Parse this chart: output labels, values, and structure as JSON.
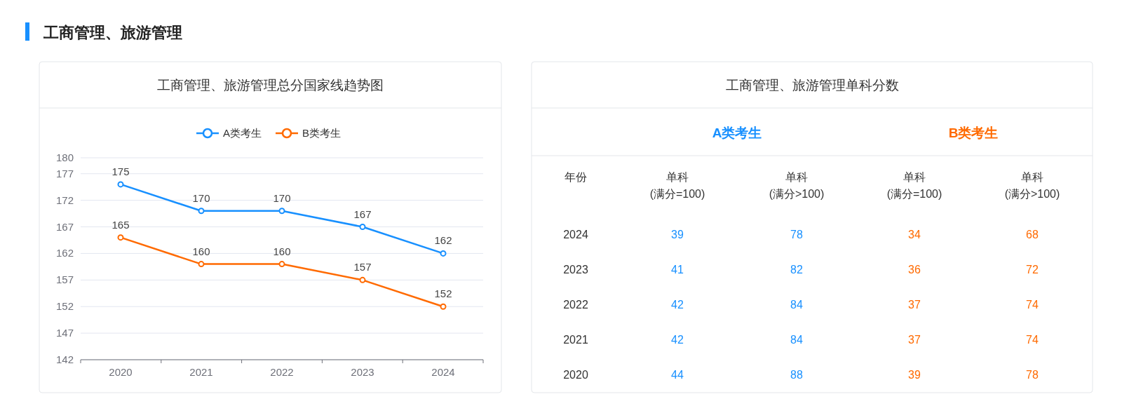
{
  "chart_data": [
    {
      "type": "line",
      "title": "工商管理、旅游管理总分国家线趋势图",
      "annotations": [
        "工商管理、旅游管理"
      ],
      "categories": [
        "2020",
        "2021",
        "2022",
        "2023",
        "2024"
      ],
      "series": [
        {
          "name": "A类考生",
          "color": "#1890ff",
          "values": [
            175,
            170,
            170,
            167,
            162
          ]
        },
        {
          "name": "B类考生",
          "color": "#ff6a00",
          "values": [
            165,
            160,
            160,
            157,
            152
          ]
        }
      ],
      "ylim": [
        142,
        180
      ],
      "yticks": [
        142,
        147,
        152,
        157,
        162,
        167,
        172,
        177,
        180
      ],
      "grid": "y",
      "legend": "top",
      "marker": "circle",
      "data_labels": true
    },
    {
      "type": "heatmap",
      "title": "工商管理、旅游管理单科分数",
      "annotations": [
        "年份",
        "A类考生",
        "B类考生"
      ],
      "categories": [
        "单科\n(满分=100)",
        "单科\n(满分>100)",
        "单科\n(满分=100)",
        "单科\n(满分>100)"
      ],
      "y_categories": [
        "2024",
        "2023",
        "2022",
        "2021",
        "2020"
      ],
      "colors": [
        "#1890ff",
        "#1890ff",
        "#ff6a00",
        "#ff6a00"
      ],
      "cells": [
        [
          39,
          78,
          34,
          68
        ],
        [
          41,
          82,
          36,
          72
        ],
        [
          42,
          84,
          37,
          74
        ],
        [
          42,
          84,
          37,
          74
        ],
        [
          44,
          88,
          39,
          78
        ]
      ],
      "data_labels": true
    }
  ]
}
